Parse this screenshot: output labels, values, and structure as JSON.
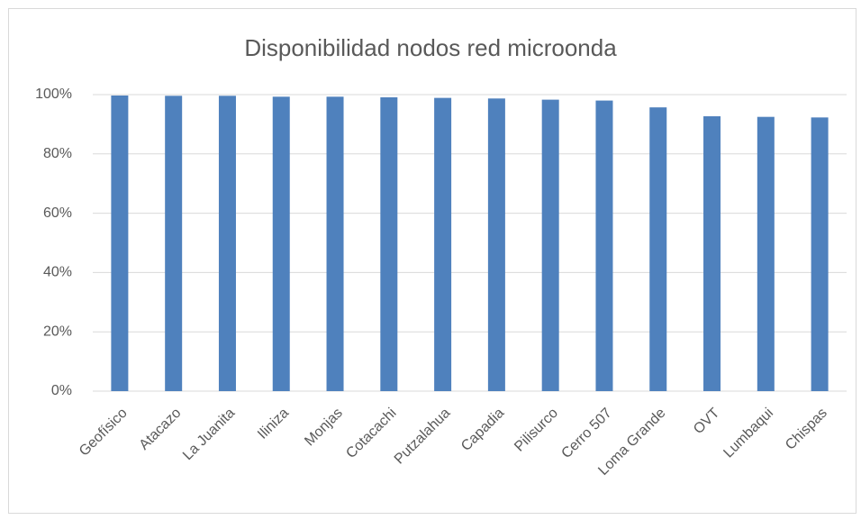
{
  "chart_data": {
    "type": "bar",
    "title": "Disponibilidad nodos red microonda",
    "categories": [
      "Geofísico",
      "Atacazo",
      "La Juanita",
      "Iliniza",
      "Monjas",
      "Cotacachi",
      "Putzalahua",
      "Capadia",
      "Pilisurco",
      "Cerro 507",
      "Loma Grande",
      "OVT",
      "Lumbaqui",
      "Chispas"
    ],
    "values": [
      99.7,
      99.6,
      99.6,
      99.3,
      99.3,
      99.1,
      98.9,
      98.7,
      98.3,
      98.0,
      95.7,
      92.7,
      92.5,
      92.3
    ],
    "color": "#4f81bd",
    "ylim": [
      0,
      100
    ],
    "yticks": [
      {
        "value": 0,
        "label": "0%"
      },
      {
        "value": 20,
        "label": "20%"
      },
      {
        "value": 40,
        "label": "40%"
      },
      {
        "value": 60,
        "label": "60%"
      },
      {
        "value": 80,
        "label": "80%"
      },
      {
        "value": 100,
        "label": "100%"
      }
    ],
    "grid": true
  }
}
